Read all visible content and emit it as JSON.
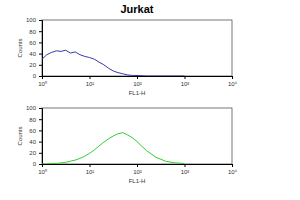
{
  "chart_data": [
    {
      "type": "line",
      "title": "Jurkat",
      "x_label": "FL1-H",
      "y_label": "Counts",
      "log": "x",
      "color": "#3a3aa8",
      "x": [
        1,
        1.26,
        1.58,
        2,
        2.51,
        3.16,
        3.98,
        5.01,
        6.31,
        7.94,
        10,
        12.6,
        15.8,
        20,
        25.1,
        31.6,
        39.8,
        50.1,
        63.1,
        79.4,
        100,
        158,
        251,
        398,
        631,
        1000
      ],
      "values": [
        30,
        38,
        42,
        45,
        44,
        46,
        41,
        43,
        38,
        35,
        33,
        30,
        25,
        20,
        14,
        9,
        6,
        4,
        2,
        1,
        1,
        0,
        0,
        0,
        0,
        0
      ],
      "xlim": [
        1,
        10000
      ],
      "xticks": [
        {
          "value": 1,
          "label": "10⁰"
        },
        {
          "value": 10,
          "label": "10¹"
        },
        {
          "value": 100,
          "label": "10²"
        },
        {
          "value": 1000,
          "label": "10³"
        },
        {
          "value": 10000,
          "label": "10⁴"
        }
      ],
      "ylim": [
        0,
        100
      ],
      "yticks": [
        0,
        20,
        40,
        60,
        80,
        100
      ]
    },
    {
      "type": "line",
      "x_label": "FL1-H",
      "y_label": "Counts",
      "log": "x",
      "color": "#33cc33",
      "x": [
        1,
        1.26,
        1.58,
        2,
        2.51,
        3.16,
        3.98,
        5.01,
        6.31,
        7.94,
        10,
        12.6,
        15.8,
        20,
        25.1,
        31.6,
        39.8,
        50.1,
        63.1,
        79.4,
        100,
        158,
        251,
        398,
        631,
        1000
      ],
      "values": [
        0,
        0,
        1,
        1,
        2,
        3,
        5,
        7,
        10,
        14,
        19,
        25,
        32,
        39,
        45,
        50,
        54,
        56,
        52,
        47,
        40,
        24,
        12,
        5,
        2,
        1
      ],
      "xlim": [
        1,
        10000
      ],
      "xticks": [
        {
          "value": 1,
          "label": "10⁰"
        },
        {
          "value": 10,
          "label": "10¹"
        },
        {
          "value": 100,
          "label": "10²"
        },
        {
          "value": 1000,
          "label": "10³"
        },
        {
          "value": 10000,
          "label": "10⁴"
        }
      ],
      "ylim": [
        0,
        100
      ],
      "yticks": [
        0,
        20,
        40,
        60,
        80,
        100
      ]
    }
  ]
}
